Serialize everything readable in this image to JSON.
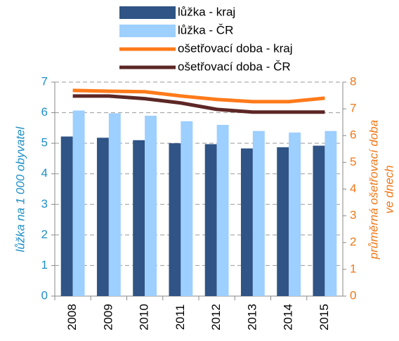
{
  "chart_data": {
    "type": "bar-line",
    "categories": [
      "2008",
      "2009",
      "2010",
      "2011",
      "2012",
      "2013",
      "2014",
      "2015"
    ],
    "series": [
      {
        "name": "lůžka - kraj",
        "type": "bar",
        "color": "#2f5485",
        "values": [
          5.22,
          5.18,
          5.1,
          5.0,
          4.97,
          4.83,
          4.87,
          4.92
        ]
      },
      {
        "name": "lůžka - ČR",
        "type": "bar",
        "color": "#9dcfff",
        "values": [
          6.07,
          5.98,
          5.9,
          5.72,
          5.6,
          5.4,
          5.35,
          5.4
        ]
      },
      {
        "name": "ošetřovací doba - kraj",
        "type": "line",
        "axis": "y2",
        "color": "#ff7a1a",
        "values": [
          7.69,
          7.66,
          7.64,
          7.48,
          7.35,
          7.27,
          7.27,
          7.4
        ]
      },
      {
        "name": "ošetřovací doba - ČR",
        "type": "line",
        "axis": "y2",
        "color": "#5c2725",
        "values": [
          7.48,
          7.48,
          7.38,
          7.22,
          6.98,
          6.88,
          6.88,
          6.88
        ]
      }
    ],
    "ylabel": "lůžka na 1 000 obyvatel",
    "y2label": [
      "průměrná ošetřovací doba",
      "ve dnech"
    ],
    "ylim": [
      0,
      7
    ],
    "yticks": [
      0,
      1,
      2,
      3,
      4,
      5,
      6,
      7
    ],
    "y2lim": [
      0,
      8
    ],
    "y2ticks": [
      0,
      1,
      2,
      3,
      4,
      5,
      6,
      7,
      8
    ],
    "ycolor": "#1e8fc6",
    "y2color": "#f07818",
    "grid": true
  }
}
